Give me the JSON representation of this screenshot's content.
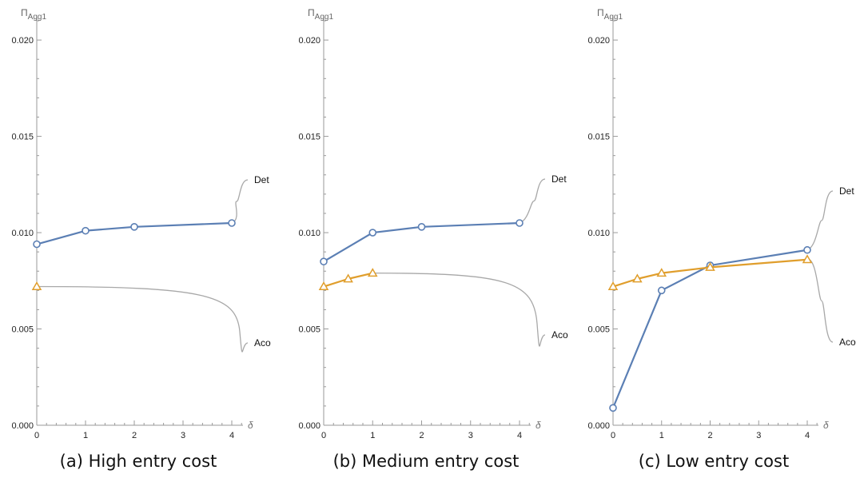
{
  "chart_data": [
    {
      "type": "line",
      "ylabel": "Π",
      "ylabel_sub": "Agg1",
      "xlabel": "δ",
      "xlim": [
        0,
        4
      ],
      "ylim": [
        0,
        0.021
      ],
      "xticks": [
        "0",
        "1",
        "2",
        "3",
        "4"
      ],
      "yticks": [
        "0.000",
        "0.005",
        "0.010",
        "0.015",
        "0.020"
      ],
      "caption": "(a) High entry cost",
      "series": [
        {
          "name": "Det",
          "color": "#5b7fb4",
          "marker": "circle",
          "x": [
            0,
            1,
            2,
            4
          ],
          "values": [
            0.0094,
            0.0101,
            0.0103,
            0.0105
          ]
        },
        {
          "name": "Aco",
          "color": "#e09e2c",
          "marker": "triangle",
          "x": [
            0
          ],
          "values": [
            0.0072
          ]
        }
      ]
    },
    {
      "type": "line",
      "ylabel": "Π",
      "ylabel_sub": "Agg1",
      "xlabel": "δ",
      "xlim": [
        0,
        4
      ],
      "ylim": [
        0,
        0.021
      ],
      "xticks": [
        "0",
        "1",
        "2",
        "3",
        "4"
      ],
      "yticks": [
        "0.000",
        "0.005",
        "0.010",
        "0.015",
        "0.020"
      ],
      "caption": "(b) Medium entry cost",
      "series": [
        {
          "name": "Det",
          "color": "#5b7fb4",
          "marker": "circle",
          "x": [
            0,
            1,
            2,
            4
          ],
          "values": [
            0.0085,
            0.01,
            0.0103,
            0.0105
          ]
        },
        {
          "name": "Aco",
          "color": "#e09e2c",
          "marker": "triangle",
          "x": [
            0,
            0.5,
            1
          ],
          "values": [
            0.0072,
            0.0076,
            0.0079
          ]
        }
      ]
    },
    {
      "type": "line",
      "ylabel": "Π",
      "ylabel_sub": "Agg1",
      "xlabel": "δ",
      "xlim": [
        0,
        4
      ],
      "ylim": [
        0,
        0.021
      ],
      "xticks": [
        "0",
        "1",
        "2",
        "3",
        "4"
      ],
      "yticks": [
        "0.000",
        "0.005",
        "0.010",
        "0.015",
        "0.020"
      ],
      "caption": "(c) Low entry cost",
      "series": [
        {
          "name": "Det",
          "color": "#5b7fb4",
          "marker": "circle",
          "x": [
            0,
            1,
            2,
            4
          ],
          "values": [
            0.0009,
            0.007,
            0.0083,
            0.0091
          ]
        },
        {
          "name": "Aco",
          "color": "#e09e2c",
          "marker": "triangle",
          "x": [
            0,
            0.5,
            1,
            2,
            4
          ],
          "values": [
            0.0072,
            0.0076,
            0.0079,
            0.0082,
            0.0086
          ]
        }
      ]
    }
  ]
}
